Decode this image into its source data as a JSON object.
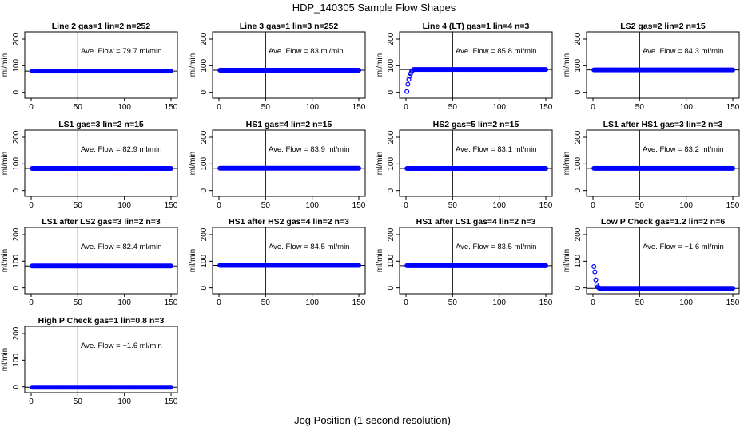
{
  "chart_data": {
    "type": "scatter",
    "title": "HDP_140305  Sample Flow Shapes",
    "xlabel": "Jog Position (1 second resolution)",
    "ylabel": "ml/min",
    "xlim": [
      0,
      150
    ],
    "ylim": [
      -10,
      215
    ],
    "x_ticks": [
      "0",
      "50",
      "100",
      "150"
    ],
    "y_ticks": [
      "0",
      "100",
      "200"
    ],
    "vline_x": 50,
    "point_color": "#0000ff",
    "panels": [
      {
        "title": "Line 2 gas=1 lin=2 n=252",
        "ave_flow": "Ave. Flow =  79.7  ml/min",
        "hline": 79.7,
        "shape": "flat",
        "value": 79.7
      },
      {
        "title": "Line 3 gas=1 lin=3 n=252",
        "ave_flow": "Ave. Flow =  83  ml/min",
        "hline": 83,
        "shape": "flat",
        "value": 83
      },
      {
        "title": "Line 4 (LT) gas=1 lin=4 n=3",
        "ave_flow": "Ave. Flow =  85.8  ml/min",
        "hline": 85.8,
        "shape": "rise",
        "value": 85.8,
        "early": [
          3,
          30,
          48,
          60,
          70,
          78,
          82
        ]
      },
      {
        "title": "LS2 gas=2 lin=2 n=15",
        "ave_flow": "Ave. Flow =  84.3  ml/min",
        "hline": 84.3,
        "shape": "flat",
        "value": 84.3
      },
      {
        "title": "LS1 gas=3 lin=2 n=15",
        "ave_flow": "Ave. Flow =  82.9  ml/min",
        "hline": 82.9,
        "shape": "flat",
        "value": 82.9
      },
      {
        "title": "HS1 gas=4 lin=2 n=15",
        "ave_flow": "Ave. Flow =  83.9  ml/min",
        "hline": 83.9,
        "shape": "flat",
        "value": 83.9
      },
      {
        "title": "HS2 gas=5 lin=2 n=15",
        "ave_flow": "Ave. Flow =  83.1  ml/min",
        "hline": 83.1,
        "shape": "flat",
        "value": 83.1
      },
      {
        "title": "LS1 after HS1 gas=3 lin=2 n=3",
        "ave_flow": "Ave. Flow =  83.2  ml/min",
        "hline": 83.2,
        "shape": "flat",
        "value": 83.2
      },
      {
        "title": "LS1 after LS2 gas=3 lin=2 n=3",
        "ave_flow": "Ave. Flow =  82.4  ml/min",
        "hline": 82.4,
        "shape": "flat",
        "value": 82.4
      },
      {
        "title": "HS1 after HS2 gas=4 lin=2 n=3",
        "ave_flow": "Ave. Flow =  84.5  ml/min",
        "hline": 84.5,
        "shape": "flat",
        "value": 84.5
      },
      {
        "title": "HS1 after LS1 gas=4 lin=2 n=3",
        "ave_flow": "Ave. Flow =  83.5  ml/min",
        "hline": 83.5,
        "shape": "flat",
        "value": 83.5
      },
      {
        "title": "Low P Check gas=1.2 lin=2 n=6",
        "ave_flow": "Ave. Flow =  −1.6  ml/min",
        "hline": -1.6,
        "shape": "drop",
        "value": -1.6,
        "early": [
          80,
          60,
          30,
          12,
          4,
          1
        ]
      },
      {
        "title": "High P Check gas=1 lin=0.8 n=3",
        "ave_flow": "Ave. Flow =  −1.6  ml/min",
        "hline": -1.6,
        "shape": "flat",
        "value": -1.6
      }
    ]
  }
}
